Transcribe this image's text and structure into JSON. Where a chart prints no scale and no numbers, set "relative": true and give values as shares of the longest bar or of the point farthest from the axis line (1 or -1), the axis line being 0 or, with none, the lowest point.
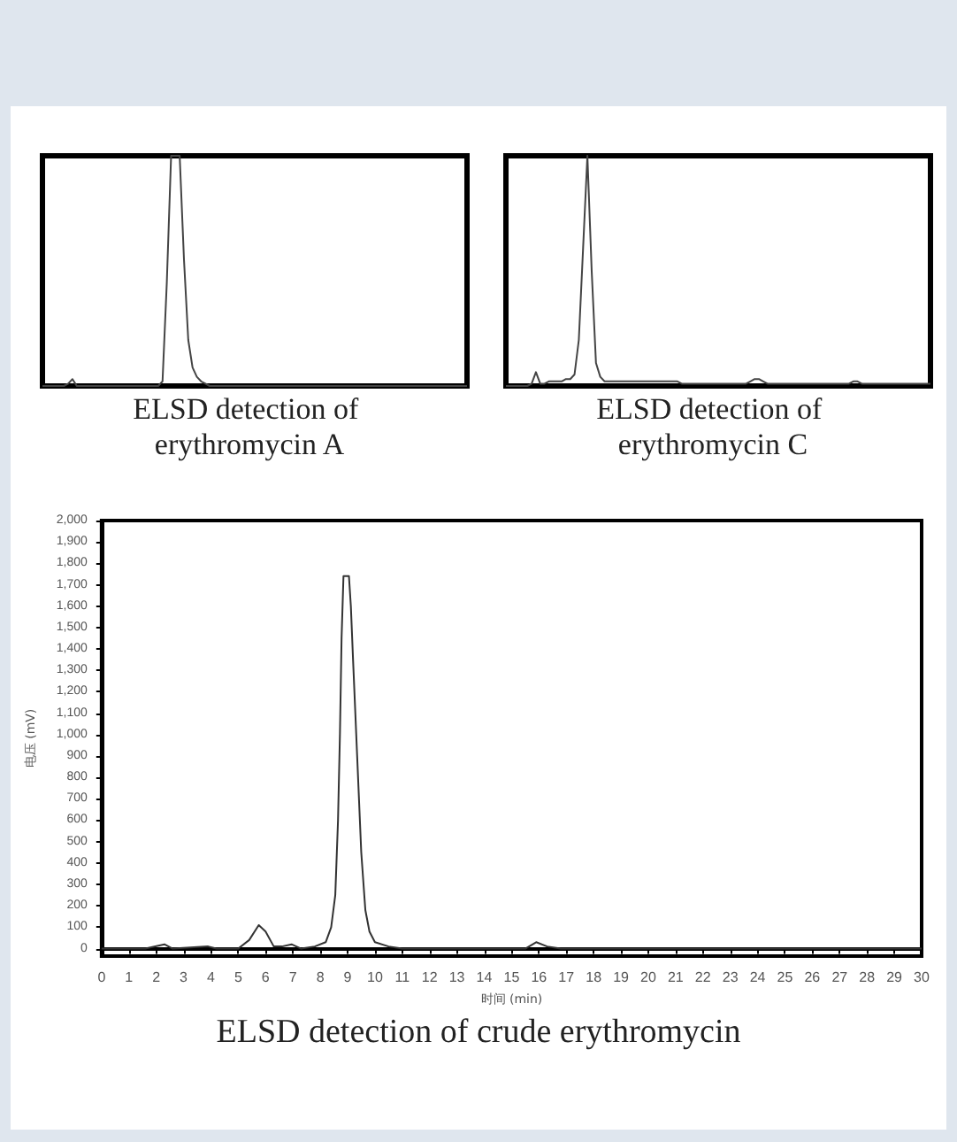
{
  "chart_data": [
    {
      "type": "line",
      "title": "ELSD detection of erythromycin A",
      "relative": true,
      "marker": "none",
      "color": "#444444",
      "categories": [
        null,
        null,
        null,
        null,
        null,
        null,
        null,
        null,
        null,
        null,
        null,
        null,
        null,
        null,
        null,
        null,
        null,
        null,
        null,
        null,
        null,
        null,
        null,
        null,
        null,
        null,
        null,
        null,
        null,
        null,
        null,
        null,
        null,
        null,
        null,
        null,
        null,
        null,
        null,
        null,
        null,
        null,
        null,
        null,
        null,
        null,
        null,
        null,
        null,
        null,
        null,
        null,
        null,
        null,
        null,
        null,
        null,
        null,
        null,
        null,
        null,
        null,
        null,
        null,
        null,
        null,
        null,
        null,
        null,
        null,
        null,
        null,
        null,
        null,
        null,
        null,
        null,
        null,
        null,
        null,
        null,
        null,
        null,
        null,
        null,
        null,
        null,
        null,
        null,
        null,
        null,
        null,
        null,
        null,
        null,
        null,
        null,
        null,
        null,
        null
      ],
      "values": [
        0,
        0,
        0,
        0,
        0,
        0,
        0.01,
        0.03,
        0,
        0,
        0,
        0,
        0,
        0,
        0,
        0,
        0,
        0,
        0,
        0,
        0,
        0,
        0,
        0,
        0,
        0,
        0,
        0,
        0.02,
        0.45,
        1,
        1,
        1,
        0.55,
        0.2,
        0.08,
        0.04,
        0.02,
        0.01,
        0,
        0,
        0,
        0,
        0,
        0,
        0,
        0,
        0,
        0,
        0,
        0,
        0,
        0,
        0,
        0,
        0,
        0,
        0,
        0,
        0,
        0,
        0,
        0,
        0,
        0,
        0,
        0,
        0,
        0,
        0,
        0,
        0,
        0,
        0,
        0,
        0,
        0,
        0,
        0,
        0,
        0,
        0,
        0,
        0,
        0,
        0,
        0,
        0,
        0,
        0,
        0,
        0,
        0,
        0,
        0,
        0,
        0,
        0,
        0,
        0
      ]
    },
    {
      "type": "line",
      "title": "ELSD detection of erythromycin C",
      "relative": true,
      "marker": "none",
      "color": "#444444",
      "categories": [
        null,
        null,
        null,
        null,
        null,
        null,
        null,
        null,
        null,
        null,
        null,
        null,
        null,
        null,
        null,
        null,
        null,
        null,
        null,
        null,
        null,
        null,
        null,
        null,
        null,
        null,
        null,
        null,
        null,
        null,
        null,
        null,
        null,
        null,
        null,
        null,
        null,
        null,
        null,
        null,
        null,
        null,
        null,
        null,
        null,
        null,
        null,
        null,
        null,
        null,
        null,
        null,
        null,
        null,
        null,
        null,
        null,
        null,
        null,
        null,
        null,
        null,
        null,
        null,
        null,
        null,
        null,
        null,
        null,
        null,
        null,
        null,
        null,
        null,
        null,
        null,
        null,
        null,
        null,
        null,
        null,
        null,
        null,
        null,
        null,
        null,
        null,
        null,
        null,
        null,
        null,
        null,
        null,
        null,
        null,
        null,
        null,
        null,
        null,
        null
      ],
      "values": [
        0,
        0,
        0,
        0,
        0,
        0,
        0.01,
        0.06,
        0.01,
        0.01,
        0.02,
        0.02,
        0.02,
        0.02,
        0.03,
        0.03,
        0.05,
        0.2,
        0.6,
        1,
        0.5,
        0.1,
        0.04,
        0.02,
        0.02,
        0.02,
        0.02,
        0.02,
        0.02,
        0.02,
        0.02,
        0.02,
        0.02,
        0.02,
        0.02,
        0.02,
        0.02,
        0.02,
        0.02,
        0.02,
        0.02,
        0.01,
        0.01,
        0.01,
        0.01,
        0.01,
        0.01,
        0.01,
        0.01,
        0.01,
        0.01,
        0.01,
        0.01,
        0.01,
        0.01,
        0.01,
        0.01,
        0.02,
        0.03,
        0.03,
        0.02,
        0.01,
        0.01,
        0.01,
        0.01,
        0.01,
        0.01,
        0.01,
        0.01,
        0.01,
        0.01,
        0.01,
        0.01,
        0.01,
        0.01,
        0.01,
        0.01,
        0.01,
        0.01,
        0.01,
        0.01,
        0.02,
        0.02,
        0.01,
        0.01,
        0.01,
        0.01,
        0.01,
        0.01,
        0.01,
        0.01,
        0.01,
        0.01,
        0.01,
        0.01,
        0.01,
        0.01,
        0.01,
        0.01,
        0.01
      ]
    },
    {
      "type": "line",
      "title": "ELSD detection of crude erythromycin",
      "xlabel": "时间 (min)",
      "ylabel": "电压 (mV)",
      "marker": "none",
      "color": "#333333",
      "x": [
        0,
        1.6,
        2.3,
        2.6,
        3.9,
        4.2,
        5.0,
        5.4,
        5.75,
        6.0,
        6.3,
        6.6,
        6.95,
        7.3,
        7.8,
        8.2,
        8.4,
        8.55,
        8.65,
        8.72,
        8.78,
        8.85,
        9.05,
        9.12,
        9.2,
        9.35,
        9.5,
        9.65,
        9.8,
        10.0,
        10.5,
        11,
        15.5,
        15.9,
        16.3,
        16.8,
        17.2,
        30
      ],
      "values": [
        0,
        0,
        20,
        0,
        10,
        0,
        0,
        40,
        110,
        80,
        10,
        10,
        20,
        0,
        10,
        30,
        100,
        250,
        600,
        1000,
        1450,
        1740,
        1740,
        1600,
        1350,
        900,
        450,
        180,
        80,
        30,
        10,
        0,
        0,
        30,
        10,
        0,
        0,
        0
      ],
      "xlim": [
        0,
        30
      ],
      "xticks": [
        0,
        1,
        2,
        3,
        4,
        5,
        6,
        7,
        8,
        9,
        10,
        11,
        12,
        13,
        14,
        15,
        16,
        17,
        18,
        19,
        20,
        21,
        22,
        23,
        24,
        25,
        26,
        27,
        28,
        29,
        30
      ],
      "ylim": [
        -35,
        2000
      ],
      "yticks": [
        0,
        100,
        200,
        300,
        400,
        500,
        600,
        700,
        800,
        900,
        {
          "value": 1000,
          "label": "1,000"
        },
        {
          "value": 1100,
          "label": "1,100"
        },
        {
          "value": 1200,
          "label": "1,200"
        },
        {
          "value": 1300,
          "label": "1,300"
        },
        {
          "value": 1400,
          "label": "1,400"
        },
        {
          "value": 1500,
          "label": "1,500"
        },
        {
          "value": 1600,
          "label": "1,600"
        },
        {
          "value": 1700,
          "label": "1,700"
        },
        {
          "value": 1800,
          "label": "1,800"
        },
        {
          "value": 1900,
          "label": "1,900"
        },
        {
          "value": 2000,
          "label": "2,000"
        }
      ]
    }
  ]
}
